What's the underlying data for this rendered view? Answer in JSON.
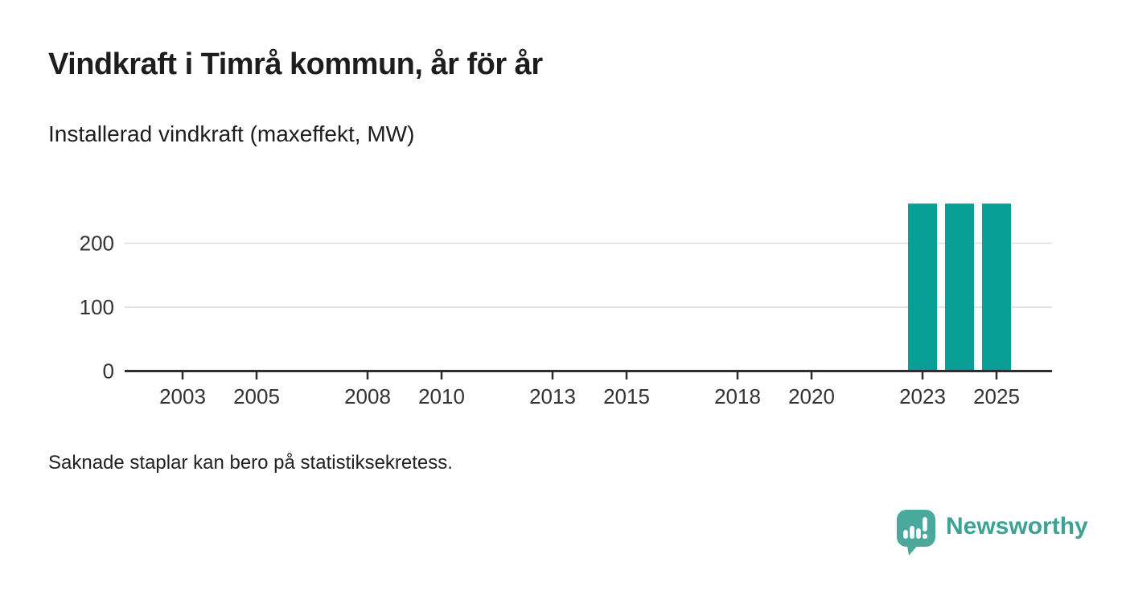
{
  "header": {
    "title": "Vindkraft i Timrå kommun, år för år",
    "subtitle": "Installerad vindkraft (maxeffekt, MW)"
  },
  "footnote": {
    "text": "Saknade staplar kan bero på statistiksekretess."
  },
  "footer": {
    "brand": "Newsworthy",
    "logo_icon": "newsworthy-speech-bubble-with-bar-chart-and-exclamation"
  },
  "colors": {
    "background": "#ffffff",
    "bar": "#0a9f96",
    "axis": "#2e2e2e",
    "grid": "#dcdcdc",
    "title_text": "#1d1d1d",
    "tick_text": "#333333",
    "brand_text": "#3ca294",
    "brand_icon": "#4ba89d"
  },
  "chart_data": {
    "type": "bar",
    "title": "Vindkraft i Timrå kommun, år för år",
    "subtitle": "Installerad vindkraft (maxeffekt, MW)",
    "ylabel": "Installerad vindkraft (maxeffekt, MW)",
    "unit": "MW",
    "categories": [
      2002,
      2003,
      2004,
      2005,
      2006,
      2007,
      2008,
      2009,
      2010,
      2011,
      2012,
      2013,
      2014,
      2015,
      2016,
      2017,
      2018,
      2019,
      2020,
      2021,
      2022,
      2023,
      2024,
      2025,
      2026
    ],
    "values": [
      null,
      null,
      null,
      null,
      null,
      null,
      null,
      null,
      null,
      null,
      null,
      null,
      null,
      null,
      null,
      null,
      null,
      null,
      null,
      null,
      null,
      262,
      262,
      262,
      null
    ],
    "x_tick_labels": [
      "2003",
      "2005",
      "2008",
      "2010",
      "2013",
      "2015",
      "2018",
      "2020",
      "2023",
      "2025"
    ],
    "y_ticks": [
      0,
      100,
      200
    ],
    "ylim": [
      0,
      285
    ],
    "grid": true,
    "legend_position": "none",
    "annotation": "Saknade staplar kan bero på statistiksekretess."
  }
}
